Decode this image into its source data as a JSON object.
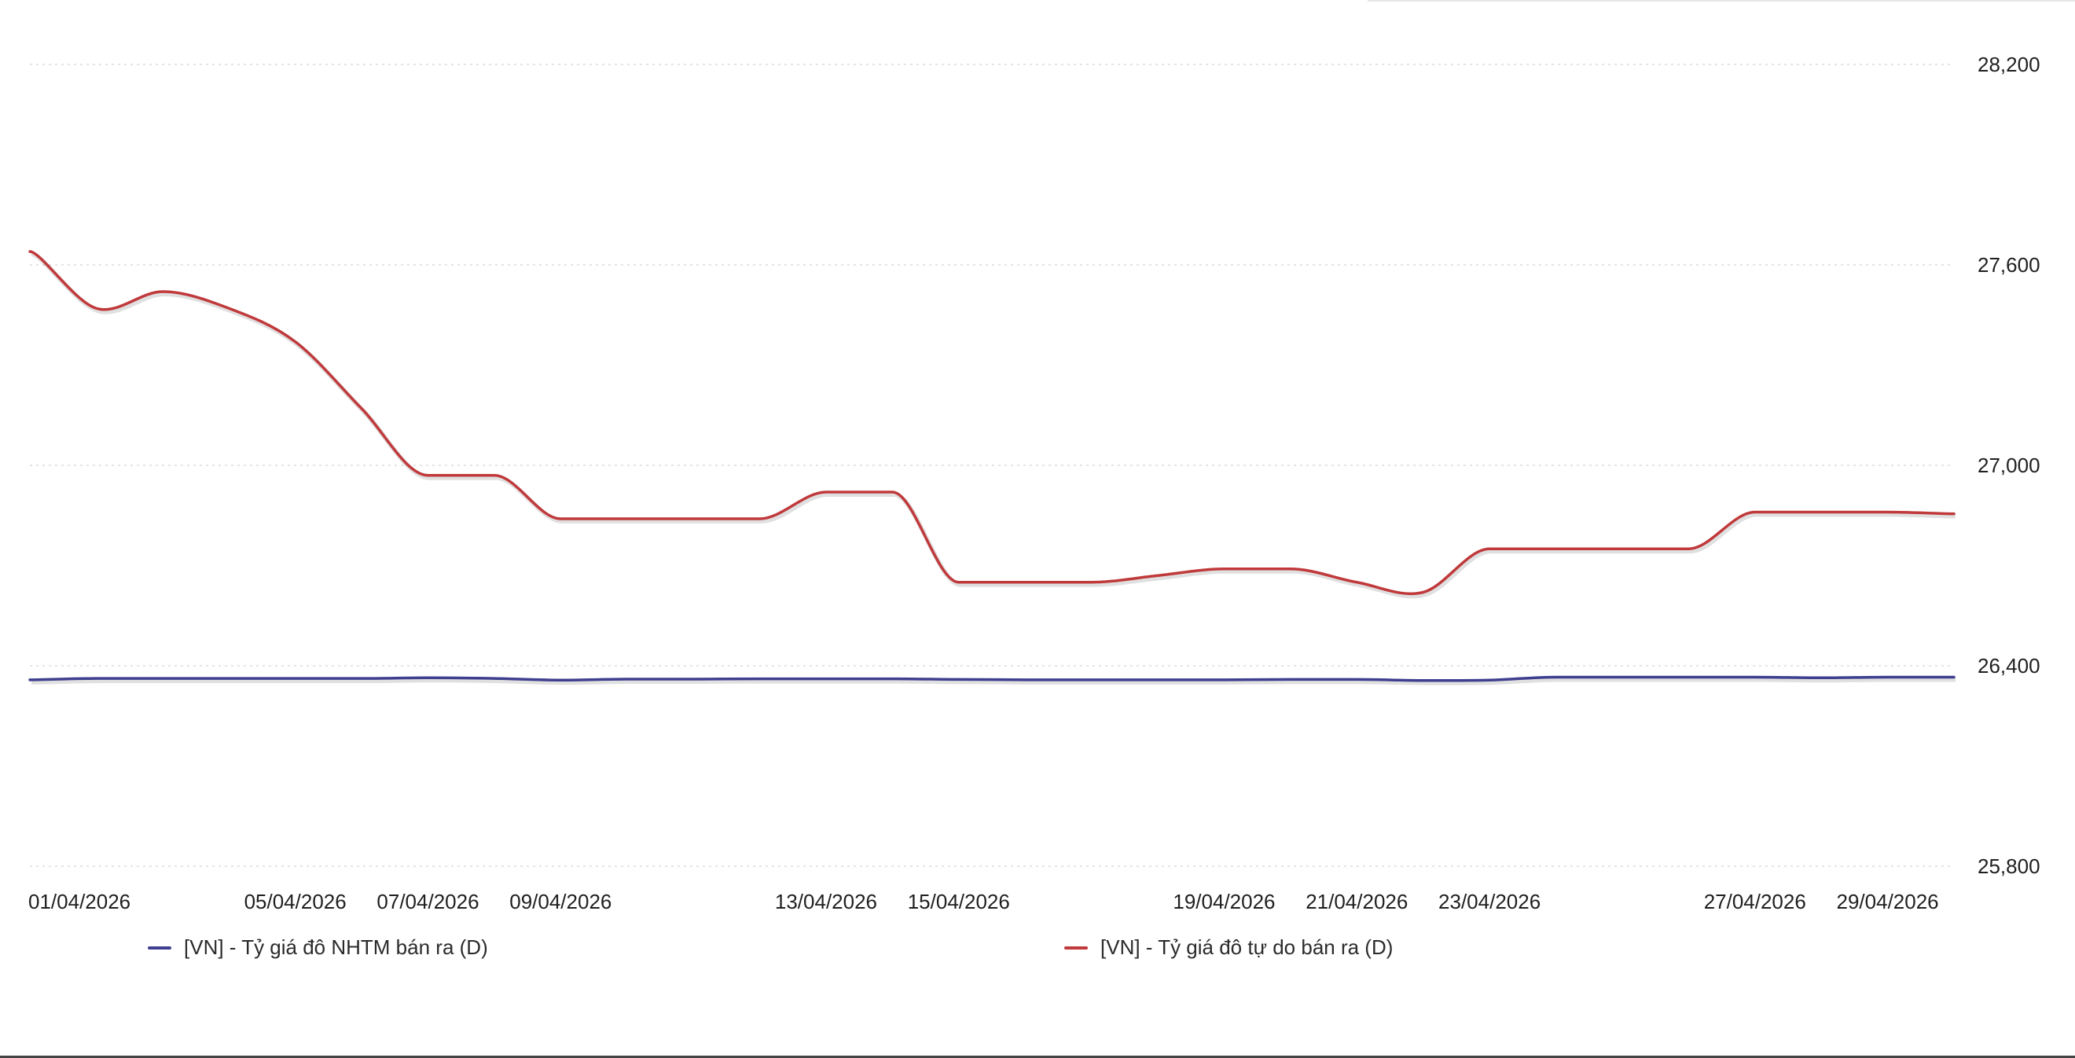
{
  "chart_data": {
    "type": "line",
    "title": "",
    "xlabel": "",
    "ylabel": "",
    "ylim": [
      25800,
      28200
    ],
    "yticks": [
      "28,200",
      "27,600",
      "27,000",
      "26,400",
      "25,800"
    ],
    "ytick_values": [
      28200,
      27600,
      27000,
      26400,
      25800
    ],
    "xlim": [
      "01/04/2026",
      "30/04/2026"
    ],
    "xtick_labels": [
      "01/04/2026",
      "05/04/2026",
      "07/04/2026",
      "09/04/2026",
      "13/04/2026",
      "15/04/2026",
      "19/04/2026",
      "21/04/2026",
      "23/04/2026",
      "27/04/2026",
      "29/04/2026"
    ],
    "grid": true,
    "legend_position": "bottom",
    "series": [
      {
        "name": "[VN] - Tỷ giá đô NHTM bán ra (D)",
        "color": "#3f3f8f",
        "x": [
          "01/04/2026",
          "02/04/2026",
          "03/04/2026",
          "04/04/2026",
          "05/04/2026",
          "06/04/2026",
          "07/04/2026",
          "08/04/2026",
          "09/04/2026",
          "10/04/2026",
          "11/04/2026",
          "12/04/2026",
          "13/04/2026",
          "14/04/2026",
          "15/04/2026",
          "16/04/2026",
          "17/04/2026",
          "18/04/2026",
          "19/04/2026",
          "20/04/2026",
          "21/04/2026",
          "22/04/2026",
          "23/04/2026",
          "24/04/2026",
          "25/04/2026",
          "26/04/2026",
          "27/04/2026",
          "28/04/2026",
          "29/04/2026",
          "30/04/2026"
        ],
        "values": [
          26358,
          26362,
          26362,
          26362,
          26362,
          26362,
          26364,
          26362,
          26357,
          26360,
          26360,
          26361,
          26361,
          26361,
          26359,
          26358,
          26358,
          26358,
          26358,
          26359,
          26359,
          26356,
          26357,
          26366,
          26366,
          26366,
          26366,
          26364,
          26366,
          26366
        ]
      },
      {
        "name": "[VN] - Tỷ giá đô tự do bán ra (D)",
        "color": "#c0393b",
        "x": [
          "01/04/2026",
          "02/04/2026",
          "03/04/2026",
          "04/04/2026",
          "05/04/2026",
          "06/04/2026",
          "07/04/2026",
          "08/04/2026",
          "09/04/2026",
          "10/04/2026",
          "11/04/2026",
          "12/04/2026",
          "13/04/2026",
          "14/04/2026",
          "15/04/2026",
          "16/04/2026",
          "17/04/2026",
          "18/04/2026",
          "19/04/2026",
          "20/04/2026",
          "21/04/2026",
          "22/04/2026",
          "23/04/2026",
          "24/04/2026",
          "25/04/2026",
          "26/04/2026",
          "27/04/2026",
          "28/04/2026",
          "29/04/2026",
          "30/04/2026"
        ],
        "values": [
          27640,
          27470,
          27520,
          27470,
          27370,
          27170,
          26970,
          26970,
          26840,
          26840,
          26840,
          26840,
          26920,
          26920,
          26650,
          26650,
          26650,
          26670,
          26690,
          26690,
          26650,
          26620,
          26750,
          26750,
          26750,
          26750,
          26860,
          26860,
          26860,
          26855
        ]
      }
    ]
  }
}
